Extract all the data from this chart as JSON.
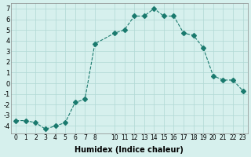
{
  "x": [
    0,
    1,
    2,
    3,
    4,
    5,
    6,
    7,
    8,
    10,
    11,
    12,
    13,
    14,
    15,
    16,
    17,
    18,
    19,
    20,
    21,
    22,
    23
  ],
  "y": [
    -3.5,
    -3.5,
    -3.7,
    -4.3,
    -4.0,
    -3.7,
    -1.8,
    -1.5,
    3.7,
    4.7,
    5.0,
    6.3,
    6.3,
    7.0,
    6.3,
    6.3,
    4.7,
    4.5,
    3.3,
    0.7,
    0.3,
    0.3,
    -0.7
  ],
  "line_color": "#1a7a6e",
  "marker": "D",
  "marker_size": 3,
  "bg_color": "#d6f0ed",
  "grid_color": "#b0d8d4",
  "xlabel": "Humidex (Indice chaleur)",
  "xlim": [
    -0.5,
    23.5
  ],
  "ylim": [
    -4.7,
    7.5
  ],
  "yticks": [
    -4,
    -3,
    -2,
    -1,
    0,
    1,
    2,
    3,
    4,
    5,
    6,
    7
  ],
  "xticks": [
    0,
    1,
    2,
    3,
    4,
    5,
    6,
    7,
    8,
    10,
    11,
    12,
    13,
    14,
    15,
    16,
    17,
    18,
    19,
    20,
    21,
    22,
    23
  ],
  "linewidth": 0.8
}
